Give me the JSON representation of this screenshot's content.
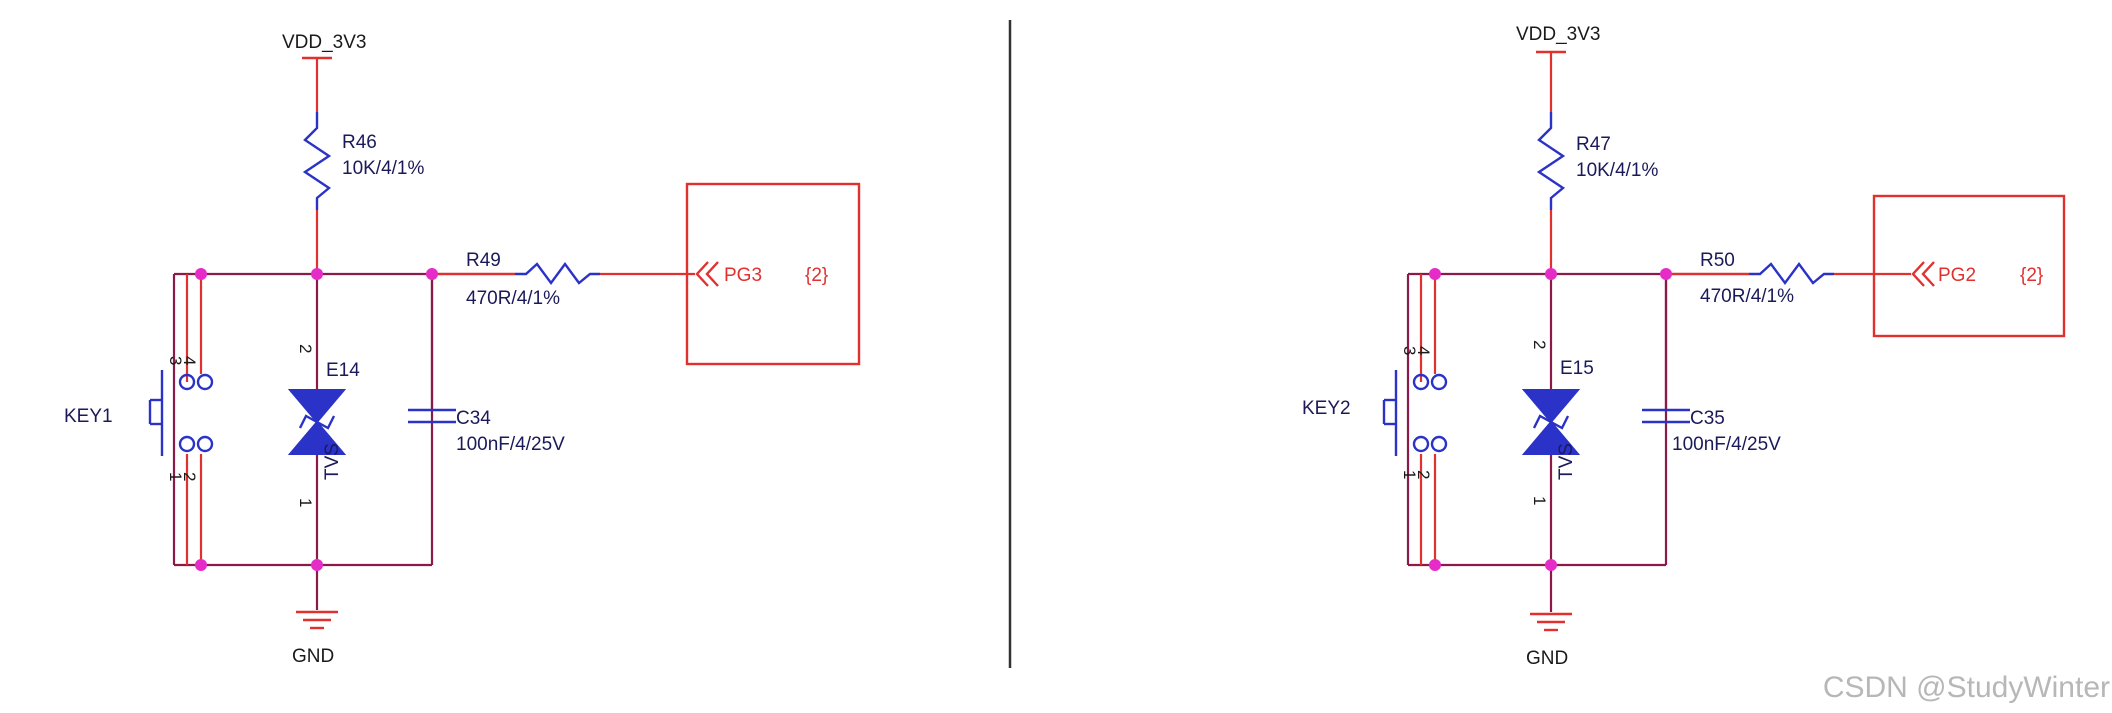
{
  "circuits": [
    {
      "supply": "VDD_3V3",
      "resistor_top": {
        "ref": "R46",
        "value": "10K/4/1%"
      },
      "resistor_series": {
        "ref": "R49",
        "value": "470R/4/1%"
      },
      "port": {
        "name": "PG3",
        "sheet": "{2}"
      },
      "switch": {
        "ref": "KEY1",
        "pins": [
          "3",
          "4",
          "1",
          "2"
        ]
      },
      "tvs": {
        "ref": "E14",
        "label": "TVS",
        "pins": [
          "2",
          "1"
        ]
      },
      "capacitor": {
        "ref": "C34",
        "value": "100nF/4/25V"
      },
      "ground": "GND"
    },
    {
      "supply": "VDD_3V3",
      "resistor_top": {
        "ref": "R47",
        "value": "10K/4/1%"
      },
      "resistor_series": {
        "ref": "R50",
        "value": "470R/4/1%"
      },
      "port": {
        "name": "PG2",
        "sheet": "{2}"
      },
      "switch": {
        "ref": "KEY2",
        "pins": [
          "3",
          "4",
          "1",
          "2"
        ]
      },
      "tvs": {
        "ref": "E15",
        "label": "TVS",
        "pins": [
          "2",
          "1"
        ]
      },
      "capacitor": {
        "ref": "C35",
        "value": "100nF/4/25V"
      },
      "ground": "GND"
    }
  ],
  "watermark": "CSDN @StudyWinter",
  "colors": {
    "wire": "#8b1a4a",
    "component": "#2a32c8",
    "highlight": "#e0312f",
    "junction": "#e62cc8"
  }
}
